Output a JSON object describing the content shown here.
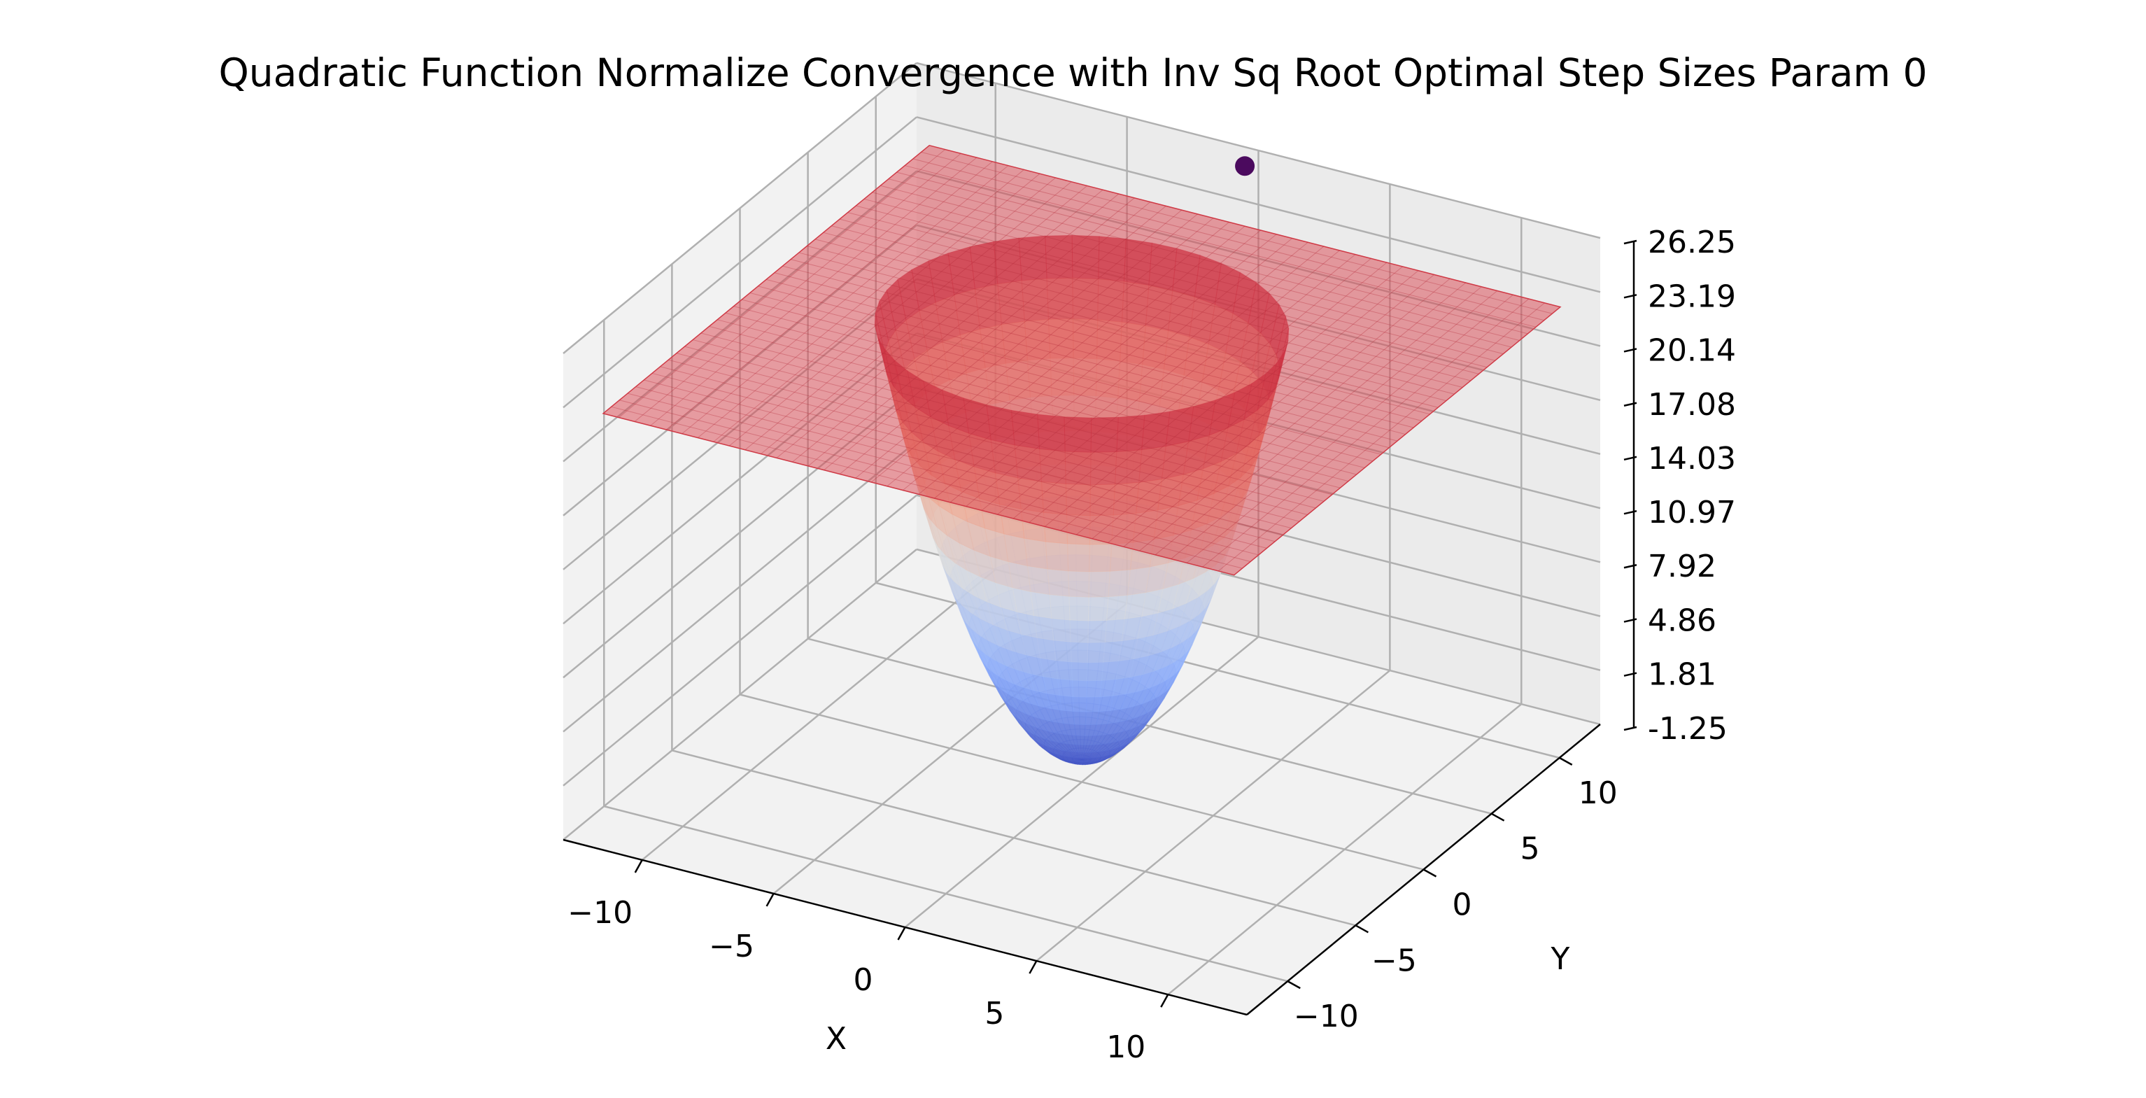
{
  "chart_data": {
    "type": "surface3d",
    "title": "Quadratic Function Normalize Convergence with Inv Sq Root Optimal Step Sizes Param 0",
    "xlabel": "X",
    "ylabel": "Y",
    "zlabel": "",
    "xlim": [
      -13,
      13
    ],
    "ylim": [
      -13,
      13
    ],
    "zlim": [
      -1.25,
      26.25
    ],
    "x_ticks": [
      "−10",
      "−5",
      "0",
      "5",
      "10"
    ],
    "y_ticks": [
      "−10",
      "−5",
      "0",
      "5",
      "10"
    ],
    "z_ticks": [
      "-1.25",
      "1.81",
      "4.86",
      "7.92",
      "10.97",
      "14.03",
      "17.08",
      "20.14",
      "23.19",
      "26.25"
    ],
    "grid": true,
    "series": [
      {
        "kind": "surface",
        "function": "z = (x^2 + y^2) / 2",
        "x_range": [
          -7,
          7
        ],
        "y_range": [
          -7,
          7
        ],
        "z_range": [
          0,
          24.5
        ],
        "colormap": "coolwarm"
      },
      {
        "kind": "plane",
        "z": 22.6,
        "x_range": [
          -12,
          12
        ],
        "y_range": [
          -12,
          12
        ],
        "color": "#d9434e",
        "alpha": 0.5
      },
      {
        "kind": "point",
        "x": 0,
        "y": 12,
        "z": 26,
        "color": "#4b0a5e"
      }
    ]
  }
}
